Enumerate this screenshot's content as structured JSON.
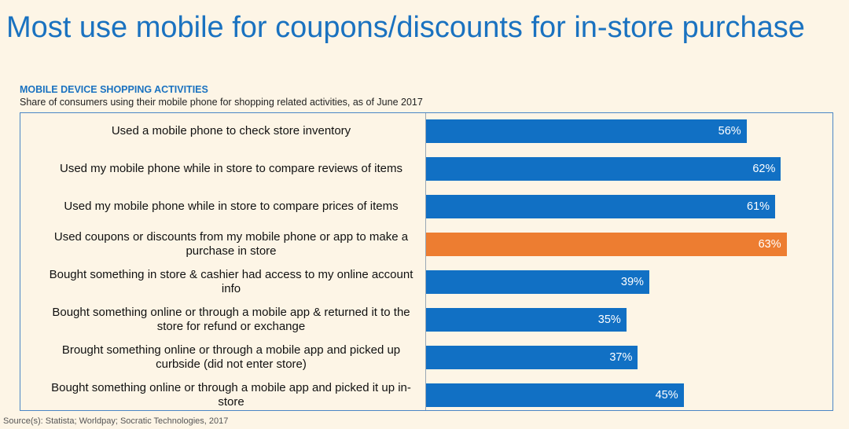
{
  "slide": {
    "title": "Most use mobile for coupons/discounts for in-store purchase",
    "source": "Source(s): Statista; Worldpay; Socratic Technologies, 2017"
  },
  "chart_data": {
    "type": "bar",
    "orientation": "horizontal",
    "title": "MOBILE DEVICE SHOPPING ACTIVITIES",
    "subtitle": "Share of consumers using their mobile phone for shopping related activities, as of June 2017",
    "categories": [
      "Used a mobile phone to check store inventory",
      "Used my mobile phone while in store to compare reviews of items",
      "Used my mobile phone while in store to compare prices of items",
      "Used coupons or discounts from my mobile phone or app to make a purchase in store",
      "Bought something in store & cashier had access to my online account info",
      "Bought something online or through a mobile app & returned it to the store for refund or exchange",
      "Brought something online or through a mobile app and picked up curbside (did not enter store)",
      "Bought something online or through a mobile app and picked it up in-store"
    ],
    "category_lines": [
      [
        "Used a mobile phone to check store inventory"
      ],
      [
        "Used my mobile phone while in store to compare reviews of items"
      ],
      [
        "Used my mobile phone while in store to compare prices of items"
      ],
      [
        "Used coupons or discounts from my mobile phone or app to make a",
        "purchase in store"
      ],
      [
        "Bought something in store & cashier had access to my online account",
        "info"
      ],
      [
        "Bought something online or through a mobile app & returned it to the",
        "store for refund or exchange"
      ],
      [
        "Brought something online or through a mobile app and picked up",
        "curbside (did not enter store)"
      ],
      [
        "Bought something online or through a mobile app and picked it up in-",
        "store"
      ]
    ],
    "values": [
      56,
      62,
      61,
      63,
      39,
      35,
      37,
      45
    ],
    "value_labels": [
      "56%",
      "62%",
      "61%",
      "63%",
      "39%",
      "35%",
      "37%",
      "45%"
    ],
    "highlight_index": 3,
    "xlim": [
      0,
      70
    ],
    "colors": {
      "default": "#1170c4",
      "highlight": "#ed7d31"
    },
    "grid": false,
    "legend": "none"
  }
}
